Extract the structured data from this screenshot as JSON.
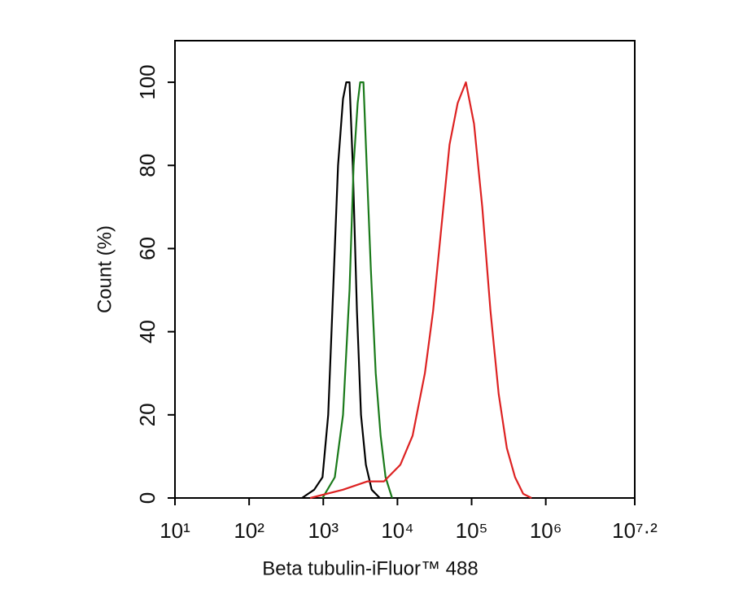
{
  "chart_data": {
    "type": "line",
    "xlabel": "Beta tubulin-iFluor™ 488",
    "ylabel": "Count  (%)",
    "xscale": "log",
    "xlim": [
      10,
      15848932
    ],
    "ylim": [
      0,
      110
    ],
    "xticks": [
      {
        "value": 10,
        "label": "10¹"
      },
      {
        "value": 100,
        "label": "10²"
      },
      {
        "value": 1000,
        "label": "10³"
      },
      {
        "value": 10000,
        "label": "10⁴"
      },
      {
        "value": 100000,
        "label": "10⁵"
      },
      {
        "value": 1000000,
        "label": "10⁶"
      },
      {
        "value": 15848932,
        "label": "10⁷·²"
      }
    ],
    "yticks": [
      0,
      20,
      40,
      60,
      80,
      100
    ],
    "series": [
      {
        "color": "#000000",
        "x": [
          516,
          755,
          975,
          1165,
          1358,
          1582,
          1843,
          2039,
          2258,
          2500,
          2840,
          3223,
          3755,
          4487,
          5785
        ],
        "values": [
          0,
          2,
          5,
          20,
          50,
          80,
          96,
          100,
          100,
          80,
          45,
          20,
          8,
          2,
          0
        ]
      },
      {
        "color": "#1a7a1a",
        "x": [
          975,
          1429,
          1843,
          2258,
          2564,
          2911,
          3141,
          3477,
          3852,
          4375,
          5094,
          5929,
          6911,
          8475
        ],
        "values": [
          0,
          5,
          20,
          50,
          80,
          95,
          100,
          100,
          80,
          55,
          30,
          15,
          5,
          0
        ]
      },
      {
        "color": "#dd2222",
        "x": [
          665,
          1843,
          3951,
          6577,
          10950,
          16010,
          23440,
          30260,
          39000,
          50350,
          64890,
          83720,
          107900,
          139300,
          179500,
          231700,
          298600,
          385500,
          496600,
          641300
        ],
        "values": [
          0,
          2,
          4,
          4,
          8,
          15,
          30,
          45,
          65,
          85,
          95,
          100,
          90,
          70,
          45,
          25,
          12,
          5,
          1,
          0
        ]
      }
    ]
  }
}
